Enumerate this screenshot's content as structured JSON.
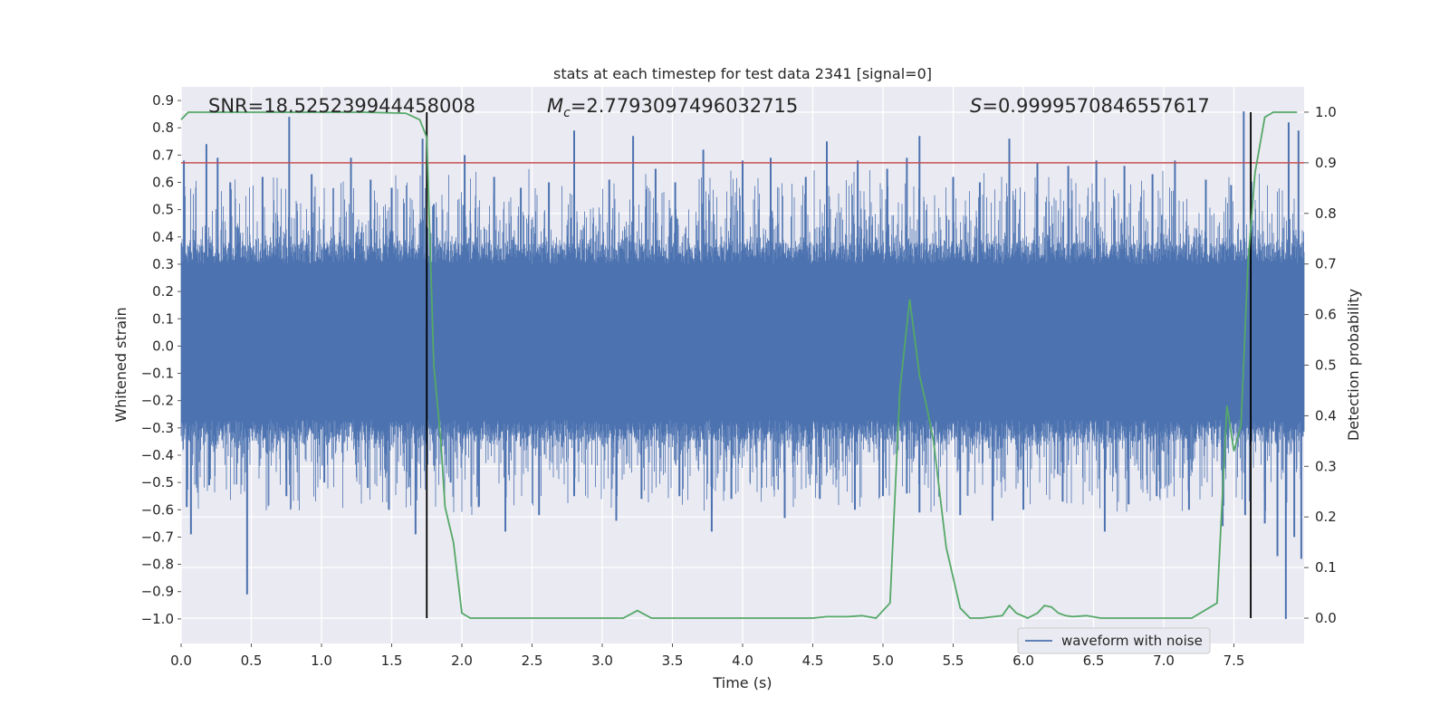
{
  "chart_data": {
    "type": "line",
    "title": "stats at each timestep for test data 2341 [signal=0]",
    "xlabel": "Time (s)",
    "ylabel_left": "Whitened strain",
    "ylabel_right": "Detection probability",
    "xlim": [
      0,
      8
    ],
    "ylim_left": [
      -1.09,
      0.95
    ],
    "ylim_right": [
      -0.05,
      1.05
    ],
    "x_ticks": [
      "0.0",
      "0.5",
      "1.0",
      "1.5",
      "2.0",
      "2.5",
      "3.0",
      "3.5",
      "4.0",
      "4.5",
      "5.0",
      "5.5",
      "6.0",
      "6.5",
      "7.0",
      "7.5"
    ],
    "y_left_ticks": [
      "0.9",
      "0.8",
      "0.7",
      "0.6",
      "0.5",
      "0.4",
      "0.3",
      "0.2",
      "0.1",
      "0.0",
      "−0.1",
      "−0.2",
      "−0.3",
      "−0.4",
      "−0.5",
      "−0.6",
      "−0.7",
      "−0.8",
      "−0.9",
      "−1.0"
    ],
    "y_right_ticks": [
      "1.0",
      "0.9",
      "0.8",
      "0.7",
      "0.6",
      "0.5",
      "0.4",
      "0.3",
      "0.2",
      "0.1",
      "0.0"
    ],
    "grid": true,
    "background": "#eaeaf2",
    "annotations": {
      "snr": "SNR=18.525239944458008",
      "mc_symbol": "M",
      "mc_subscript": "c",
      "mc_value": "=2.7793097496032715",
      "s_symbol": "S",
      "s_value": "=0.9999570846557617"
    },
    "threshold": {
      "value": 0.9,
      "axis": "right",
      "color": "#c44e52"
    },
    "vertical_markers": {
      "x": [
        1.75,
        7.62
      ],
      "color": "#000000"
    },
    "legend": {
      "position": "lower-right",
      "entries": [
        "waveform with noise"
      ]
    },
    "series": [
      {
        "name": "waveform with noise",
        "axis": "left",
        "color": "#4c72b0",
        "kind": "noise",
        "duration": 8.0,
        "typical_min": -0.27,
        "typical_max": 0.3,
        "upper_spikes": [
          [
            0.02,
            0.68
          ],
          [
            0.18,
            0.74
          ],
          [
            0.26,
            0.69
          ],
          [
            0.35,
            0.6
          ],
          [
            0.58,
            0.62
          ],
          [
            0.77,
            0.84
          ],
          [
            0.93,
            0.63
          ],
          [
            1.21,
            0.69
          ],
          [
            1.35,
            0.61
          ],
          [
            1.5,
            0.58
          ],
          [
            1.72,
            0.76
          ],
          [
            1.8,
            0.52
          ],
          [
            2.02,
            0.7
          ],
          [
            2.23,
            0.62
          ],
          [
            2.42,
            0.58
          ],
          [
            2.62,
            0.6
          ],
          [
            2.8,
            0.79
          ],
          [
            3.05,
            0.61
          ],
          [
            3.22,
            0.77
          ],
          [
            3.38,
            0.65
          ],
          [
            3.52,
            0.6
          ],
          [
            3.72,
            0.72
          ],
          [
            4.0,
            0.68
          ],
          [
            4.2,
            0.69
          ],
          [
            4.45,
            0.62
          ],
          [
            4.6,
            0.75
          ],
          [
            4.82,
            0.68
          ],
          [
            5.03,
            0.65
          ],
          [
            5.17,
            0.69
          ],
          [
            5.26,
            0.77
          ],
          [
            5.5,
            0.62
          ],
          [
            5.69,
            0.6
          ],
          [
            5.9,
            0.76
          ],
          [
            6.1,
            0.67
          ],
          [
            6.32,
            0.66
          ],
          [
            6.52,
            0.68
          ],
          [
            6.72,
            0.66
          ],
          [
            6.92,
            0.63
          ],
          [
            7.08,
            0.68
          ],
          [
            7.3,
            0.61
          ],
          [
            7.48,
            0.59
          ],
          [
            7.57,
            0.86
          ],
          [
            7.89,
            0.82
          ],
          [
            7.96,
            0.79
          ]
        ],
        "lower_spikes": [
          [
            0.04,
            -0.59
          ],
          [
            0.07,
            -0.69
          ],
          [
            0.2,
            -0.51
          ],
          [
            0.47,
            -0.91
          ],
          [
            0.75,
            -0.55
          ],
          [
            1.02,
            -0.5
          ],
          [
            1.33,
            -0.52
          ],
          [
            1.48,
            -0.6
          ],
          [
            1.67,
            -0.69
          ],
          [
            1.92,
            -0.5
          ],
          [
            2.12,
            -0.59
          ],
          [
            2.31,
            -0.68
          ],
          [
            2.55,
            -0.62
          ],
          [
            2.8,
            -0.55
          ],
          [
            3.1,
            -0.64
          ],
          [
            3.28,
            -0.56
          ],
          [
            3.55,
            -0.55
          ],
          [
            3.78,
            -0.68
          ],
          [
            3.92,
            -0.56
          ],
          [
            4.3,
            -0.63
          ],
          [
            4.55,
            -0.56
          ],
          [
            4.8,
            -0.6
          ],
          [
            5.0,
            -0.55
          ],
          [
            5.17,
            -0.54
          ],
          [
            5.26,
            -0.61
          ],
          [
            5.55,
            -0.62
          ],
          [
            5.78,
            -0.64
          ],
          [
            6.0,
            -0.6
          ],
          [
            6.28,
            -0.57
          ],
          [
            6.58,
            -0.68
          ],
          [
            6.75,
            -0.58
          ],
          [
            6.95,
            -0.55
          ],
          [
            7.18,
            -0.6
          ],
          [
            7.42,
            -0.66
          ],
          [
            7.58,
            -0.62
          ],
          [
            7.72,
            -0.65
          ],
          [
            7.81,
            -0.77
          ],
          [
            7.87,
            -1.0
          ],
          [
            7.93,
            -0.7
          ],
          [
            7.98,
            -0.78
          ]
        ]
      },
      {
        "name": "",
        "axis": "right",
        "color": "#55a868",
        "x": [
          0,
          0.05,
          0.1,
          0.3,
          0.5,
          1.0,
          1.3,
          1.6,
          1.7,
          1.75,
          1.8,
          1.85,
          1.88,
          1.94,
          2.0,
          2.06,
          2.2,
          2.5,
          2.8,
          3.0,
          3.15,
          3.25,
          3.35,
          3.5,
          4.0,
          4.5,
          4.6,
          4.75,
          4.85,
          4.95,
          5.05,
          5.12,
          5.19,
          5.26,
          5.31,
          5.36,
          5.45,
          5.55,
          5.62,
          5.7,
          5.85,
          5.9,
          5.95,
          6.03,
          6.1,
          6.15,
          6.2,
          6.25,
          6.3,
          6.35,
          6.45,
          6.55,
          6.65,
          6.8,
          7.0,
          7.2,
          7.38,
          7.45,
          7.5,
          7.55,
          7.6,
          7.65,
          7.72,
          7.78,
          7.85,
          7.95
        ],
        "y": [
          0.985,
          1.0,
          1.0,
          1.0,
          1.0,
          1.0,
          1.0,
          0.998,
          0.985,
          0.95,
          0.5,
          0.35,
          0.22,
          0.15,
          0.01,
          0.0,
          0.0,
          0.0,
          0.0,
          0.0,
          0.0,
          0.015,
          0.0,
          0.0,
          0.0,
          0.0,
          0.003,
          0.003,
          0.005,
          0.0,
          0.03,
          0.45,
          0.63,
          0.48,
          0.42,
          0.35,
          0.14,
          0.02,
          0.0,
          0.0,
          0.005,
          0.025,
          0.01,
          0.0,
          0.01,
          0.025,
          0.022,
          0.01,
          0.005,
          0.003,
          0.005,
          0.0,
          0.0,
          0.0,
          0.0,
          0.0,
          0.03,
          0.42,
          0.33,
          0.38,
          0.7,
          0.88,
          0.99,
          1.0,
          1.0,
          1.0
        ]
      }
    ]
  }
}
